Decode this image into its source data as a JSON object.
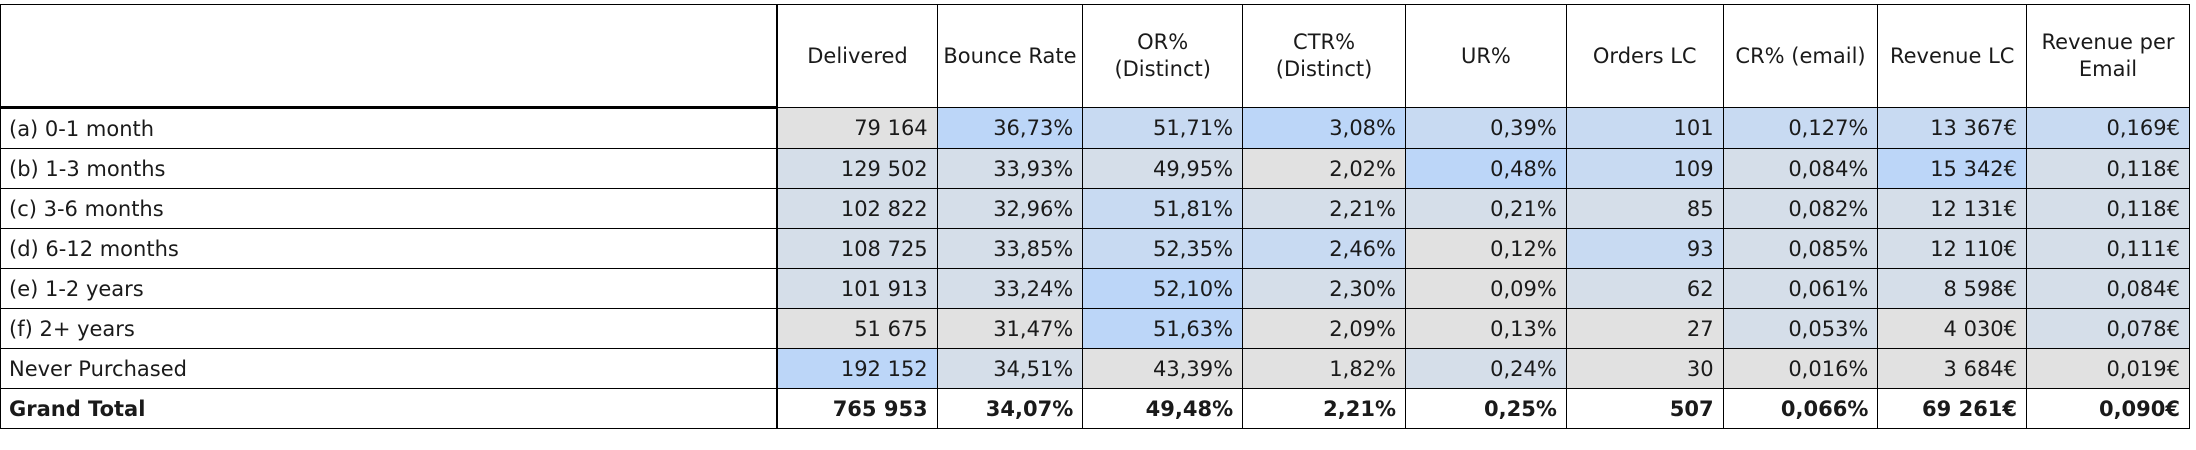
{
  "chart_data": {
    "type": "table",
    "row_header": "",
    "columns": [
      "Delivered",
      "Bounce Rate",
      "OR%\n(Distinct)",
      "CTR%\n(Distinct)",
      "UR%",
      "Orders LC",
      "CR% (email)",
      "Revenue LC",
      "Revenue per\nEmail"
    ],
    "rows": [
      {
        "label": "(a) 0-1 month",
        "values": [
          "79 164",
          "36,73%",
          "51,71%",
          "3,08%",
          "0,39%",
          "101",
          "0,127%",
          "13 367€",
          "0,169€"
        ],
        "shade": [
          0,
          3,
          2,
          3,
          2,
          2,
          2,
          2,
          2
        ]
      },
      {
        "label": "(b) 1-3 months",
        "values": [
          "129 502",
          "33,93%",
          "49,95%",
          "2,02%",
          "0,48%",
          "109",
          "0,084%",
          "15 342€",
          "0,118€"
        ],
        "shade": [
          1,
          1,
          1,
          0,
          3,
          2,
          1,
          3,
          1
        ]
      },
      {
        "label": "(c) 3-6 months",
        "values": [
          "102 822",
          "32,96%",
          "51,81%",
          "2,21%",
          "0,21%",
          "85",
          "0,082%",
          "12 131€",
          "0,118€"
        ],
        "shade": [
          1,
          1,
          2,
          1,
          1,
          1,
          1,
          1,
          1
        ]
      },
      {
        "label": "(d) 6-12 months",
        "values": [
          "108 725",
          "33,85%",
          "52,35%",
          "2,46%",
          "0,12%",
          "93",
          "0,085%",
          "12 110€",
          "0,111€"
        ],
        "shade": [
          1,
          1,
          2,
          2,
          0,
          2,
          1,
          1,
          1
        ]
      },
      {
        "label": "(e) 1-2 years",
        "values": [
          "101 913",
          "33,24%",
          "52,10%",
          "2,30%",
          "0,09%",
          "62",
          "0,061%",
          "8 598€",
          "0,084€"
        ],
        "shade": [
          1,
          1,
          3,
          1,
          0,
          1,
          1,
          1,
          1
        ]
      },
      {
        "label": "(f) 2+ years",
        "values": [
          "51 675",
          "31,47%",
          "51,63%",
          "2,09%",
          "0,13%",
          "27",
          "0,053%",
          "4 030€",
          "0,078€"
        ],
        "shade": [
          0,
          0,
          3,
          0,
          0,
          0,
          1,
          0,
          1
        ]
      },
      {
        "label": "Never Purchased",
        "values": [
          "192 152",
          "34,51%",
          "43,39%",
          "1,82%",
          "0,24%",
          "30",
          "0,016%",
          "3 684€",
          "0,019€"
        ],
        "shade": [
          3,
          1,
          0,
          0,
          1,
          0,
          0,
          0,
          0
        ]
      }
    ],
    "total": {
      "label": "Grand Total",
      "values": [
        "765 953",
        "34,07%",
        "49,48%",
        "2,21%",
        "0,25%",
        "507",
        "0,066%",
        "69 261€",
        "0,090€"
      ]
    },
    "colors": [
      "#e1e1e1",
      "#d5dee9",
      "#c8daf2",
      "#bcd6f8"
    ]
  }
}
